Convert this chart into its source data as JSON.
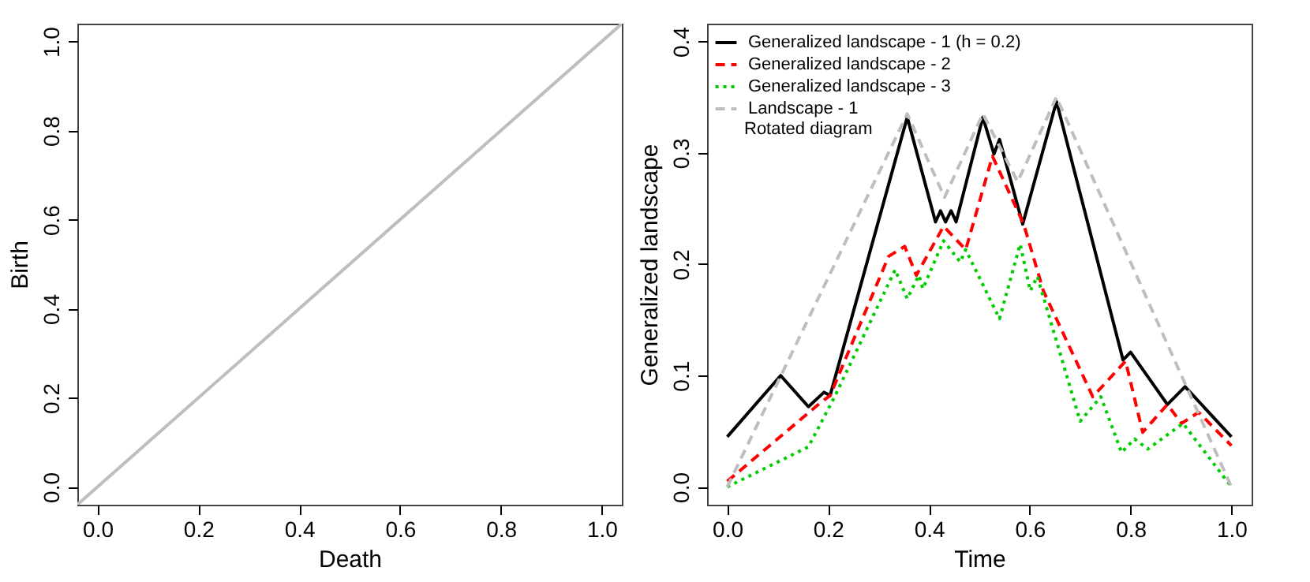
{
  "chart_data": [
    {
      "type": "line",
      "xlabel": "Death",
      "ylabel": "Birth",
      "xlim": [
        -0.04,
        1.04
      ],
      "ylim": [
        -0.04,
        1.04
      ],
      "xticks": [
        {
          "value": 0,
          "label": "0.0"
        },
        {
          "value": 0.2,
          "label": "0.2"
        },
        {
          "value": 0.4,
          "label": "0.4"
        },
        {
          "value": 0.6,
          "label": "0.6"
        },
        {
          "value": 0.8,
          "label": "0.8"
        },
        {
          "value": 1,
          "label": "1.0"
        }
      ],
      "yticks": [
        {
          "value": 0,
          "label": "0.0"
        },
        {
          "value": 0.2,
          "label": "0.2"
        },
        {
          "value": 0.4,
          "label": "0.4"
        },
        {
          "value": 0.6,
          "label": "0.6"
        },
        {
          "value": 0.8,
          "label": "0.8"
        },
        {
          "value": 1,
          "label": "1.0"
        }
      ],
      "series": [
        {
          "color": "#bebebe",
          "line_style": "solid",
          "x": [
            -0.04,
            1.04
          ],
          "values": [
            -0.04,
            1.04
          ]
        }
      ]
    },
    {
      "type": "line",
      "xlabel": "Time",
      "ylabel": "Generalized landscape",
      "xlim": [
        -0.04,
        1.04
      ],
      "ylim": [
        -0.016,
        0.416
      ],
      "legend": "top left",
      "xticks": [
        {
          "value": 0,
          "label": "0.0"
        },
        {
          "value": 0.2,
          "label": "0.2"
        },
        {
          "value": 0.4,
          "label": "0.4"
        },
        {
          "value": 0.6,
          "label": "0.6"
        },
        {
          "value": 0.8,
          "label": "0.8"
        },
        {
          "value": 1,
          "label": "1.0"
        }
      ],
      "yticks": [
        {
          "value": 0,
          "label": "0.0"
        },
        {
          "value": 0.1,
          "label": "0.1"
        },
        {
          "value": 0.2,
          "label": "0.2"
        },
        {
          "value": 0.3,
          "label": "0.3"
        },
        {
          "value": 0.4,
          "label": "0.4"
        }
      ],
      "annotations": [
        "Rotated diagram"
      ],
      "series": [
        {
          "name": "Generalized landscape - 1 (h = 0.2)",
          "color": "#000000",
          "line_style": "solid",
          "x": [
            0,
            0.106,
            0.161,
            0.192,
            0.204,
            0.357,
            0.413,
            0.423,
            0.433,
            0.444,
            0.454,
            0.507,
            0.529,
            0.54,
            0.586,
            0.653,
            0.785,
            0.8,
            0.873,
            0.908,
            1
          ],
          "values": [
            0.045,
            0.1,
            0.072,
            0.085,
            0.082,
            0.332,
            0.238,
            0.248,
            0.238,
            0.248,
            0.238,
            0.332,
            0.299,
            0.312,
            0.236,
            0.346,
            0.114,
            0.121,
            0.074,
            0.09,
            0.045
          ]
        },
        {
          "name": "Generalized landscape - 2",
          "color": "#ff0000",
          "line_style": "dashed",
          "x": [
            0,
            0.186,
            0.204,
            0.32,
            0.352,
            0.375,
            0.429,
            0.473,
            0.526,
            0.588,
            0.627,
            0.725,
            0.79,
            0.824,
            0.873,
            0.901,
            0.935,
            1
          ],
          "values": [
            0.005,
            0.076,
            0.082,
            0.207,
            0.216,
            0.19,
            0.234,
            0.213,
            0.297,
            0.236,
            0.176,
            0.081,
            0.113,
            0.049,
            0.074,
            0.057,
            0.067,
            0.037
          ]
        },
        {
          "name": "Generalized landscape - 3",
          "color": "#00cd00",
          "line_style": "dotted",
          "x": [
            0,
            0.161,
            0.213,
            0.333,
            0.357,
            0.38,
            0.388,
            0.429,
            0.462,
            0.473,
            0.54,
            0.581,
            0.601,
            0.615,
            0.7,
            0.741,
            0.782,
            0.808,
            0.834,
            0.904,
            1
          ],
          "values": [
            0,
            0.036,
            0.081,
            0.195,
            0.169,
            0.19,
            0.178,
            0.221,
            0.202,
            0.213,
            0.151,
            0.218,
            0.176,
            0.189,
            0.059,
            0.081,
            0.031,
            0.043,
            0.034,
            0.057,
            0
          ]
        },
        {
          "name": "Landscape - 1",
          "color": "#bebebe",
          "line_style": "dashed",
          "x": [
            0,
            0.357,
            0.431,
            0.507,
            0.576,
            0.653,
            1
          ],
          "values": [
            0,
            0.335,
            0.26,
            0.335,
            0.274,
            0.35,
            0
          ]
        }
      ]
    }
  ]
}
